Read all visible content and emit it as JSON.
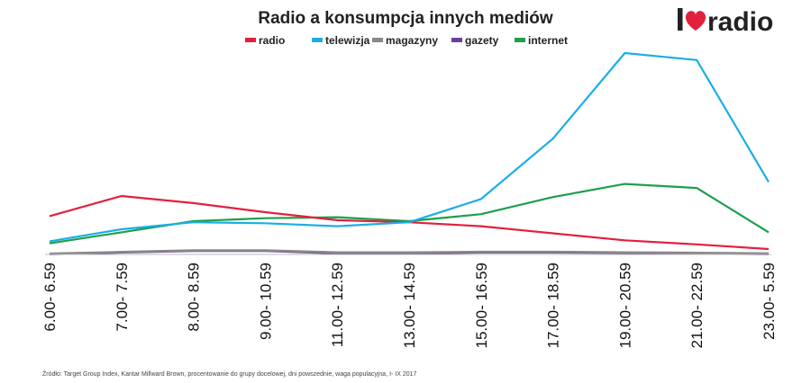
{
  "logo": {
    "prefix": "I",
    "word": "radio",
    "heart_color": "#e2203d"
  },
  "source_note": "Źródło: Target Group Index, Kantar Millward Brown, procentowanie do grupy docelowej, dni powszednie, waga populacyjna, I- IX 2017",
  "chart_data": {
    "type": "line",
    "title": "Radio a konsumpcja innych mediów",
    "xlabel": "",
    "ylabel": "",
    "legend_position": "top-center",
    "grid": false,
    "ylim": [
      0,
      100
    ],
    "categories": [
      "6.00- 6.59",
      "7.00- 7.59",
      "8.00- 8.59",
      "9.00- 10.59",
      "11.00- 12.59",
      "13.00- 14.59",
      "15.00- 16.59",
      "17.00- 18.59",
      "19.00- 20.59",
      "21.00- 22.59",
      "23.00- 5.59"
    ],
    "series": [
      {
        "name": "radio",
        "color": "#e2203d",
        "values": [
          19,
          29,
          25.5,
          21,
          17,
          16,
          14,
          10.5,
          7,
          5,
          2.7
        ]
      },
      {
        "name": "telewizja",
        "color": "#1aaee8",
        "values": [
          6.5,
          12.5,
          16,
          15.5,
          14,
          16,
          27.5,
          57.5,
          100,
          96.5,
          36
        ]
      },
      {
        "name": "magazyny",
        "color": "#888888",
        "values": [
          0.4,
          1.2,
          2,
          2,
          1,
          1,
          1.3,
          1.3,
          1,
          0.8,
          0.5
        ]
      },
      {
        "name": "gazety",
        "color": "#6b3fa0",
        "values": [
          0.2,
          1,
          1.8,
          1.8,
          0.6,
          0.6,
          1,
          1,
          0.8,
          0.5,
          0.2
        ]
      },
      {
        "name": "internet",
        "color": "#1e9f4a",
        "values": [
          5.5,
          11,
          16.5,
          18,
          18.5,
          16.5,
          20,
          28.5,
          35,
          33,
          11
        ]
      }
    ]
  }
}
